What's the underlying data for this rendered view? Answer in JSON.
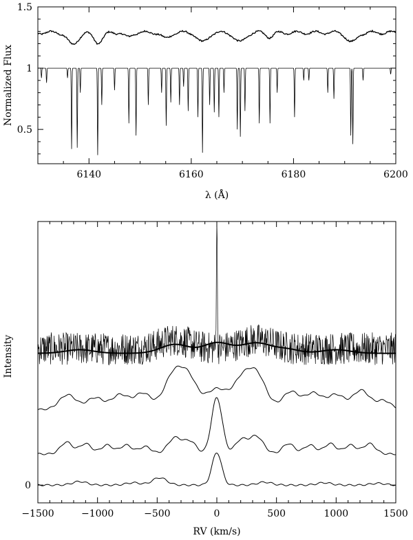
{
  "chart_data": [
    {
      "type": "line",
      "panel": "top",
      "xlabel": "λ (Å)",
      "ylabel": "Normalized Flux",
      "xlim": [
        6130,
        6200
      ],
      "ylim": [
        0.22,
        1.5
      ],
      "x_ticks": [
        6140,
        6160,
        6180,
        6200
      ],
      "y_ticks": [
        0.5,
        1,
        1.5
      ],
      "y_tick_labels": [
        "0.5",
        "1",
        "1.5"
      ],
      "grid": false,
      "series": [
        {
          "role": "observed spectrum (offset)",
          "baseline": 1.29,
          "features": [
            {
              "center": 6136.8,
              "depth": 0.1,
              "width": 1.0
            },
            {
              "center": 6141.8,
              "depth": 0.08,
              "width": 0.9
            },
            {
              "center": 6147.6,
              "depth": 0.04,
              "width": 0.7
            },
            {
              "center": 6155.0,
              "depth": 0.05,
              "width": 0.8
            },
            {
              "center": 6162.2,
              "depth": 0.08,
              "width": 1.0
            },
            {
              "center": 6169.5,
              "depth": 0.08,
              "width": 1.0
            },
            {
              "center": 6175.4,
              "depth": 0.035,
              "width": 0.7
            },
            {
              "center": 6191.4,
              "depth": 0.08,
              "width": 1.0
            }
          ]
        },
        {
          "role": "template spectrum",
          "baseline": 1.0,
          "lines": [
            {
              "x": 6130.7,
              "depth": 0.08
            },
            {
              "x": 6131.7,
              "depth": 0.12
            },
            {
              "x": 6135.8,
              "depth": 0.08
            },
            {
              "x": 6136.6,
              "depth": 0.66
            },
            {
              "x": 6137.7,
              "depth": 0.65
            },
            {
              "x": 6138.3,
              "depth": 0.2
            },
            {
              "x": 6141.7,
              "depth": 0.71
            },
            {
              "x": 6142.5,
              "depth": 0.3
            },
            {
              "x": 6145.0,
              "depth": 0.18
            },
            {
              "x": 6147.8,
              "depth": 0.45
            },
            {
              "x": 6149.2,
              "depth": 0.55
            },
            {
              "x": 6151.6,
              "depth": 0.3
            },
            {
              "x": 6154.2,
              "depth": 0.2
            },
            {
              "x": 6155.1,
              "depth": 0.47
            },
            {
              "x": 6156.0,
              "depth": 0.28
            },
            {
              "x": 6157.7,
              "depth": 0.3
            },
            {
              "x": 6158.5,
              "depth": 0.15
            },
            {
              "x": 6159.4,
              "depth": 0.35
            },
            {
              "x": 6161.3,
              "depth": 0.4
            },
            {
              "x": 6162.2,
              "depth": 0.69
            },
            {
              "x": 6163.6,
              "depth": 0.3
            },
            {
              "x": 6164.5,
              "depth": 0.36
            },
            {
              "x": 6165.4,
              "depth": 0.4
            },
            {
              "x": 6166.4,
              "depth": 0.2
            },
            {
              "x": 6169.0,
              "depth": 0.5
            },
            {
              "x": 6169.6,
              "depth": 0.56
            },
            {
              "x": 6170.5,
              "depth": 0.35
            },
            {
              "x": 6173.3,
              "depth": 0.45
            },
            {
              "x": 6175.4,
              "depth": 0.45
            },
            {
              "x": 6176.8,
              "depth": 0.2
            },
            {
              "x": 6180.2,
              "depth": 0.4
            },
            {
              "x": 6182.0,
              "depth": 0.1
            },
            {
              "x": 6183.0,
              "depth": 0.1
            },
            {
              "x": 6186.7,
              "depth": 0.2
            },
            {
              "x": 6187.9,
              "depth": 0.25
            },
            {
              "x": 6191.2,
              "depth": 0.55
            },
            {
              "x": 6191.6,
              "depth": 0.62
            },
            {
              "x": 6193.6,
              "depth": 0.1
            },
            {
              "x": 6199.0,
              "depth": 0.05
            }
          ]
        }
      ]
    },
    {
      "type": "line",
      "panel": "bottom",
      "xlabel": "RV  (km/s)",
      "ylabel": "Intensity",
      "xlim": [
        -1500,
        1500
      ],
      "ylim": [
        -0.6,
        8.9
      ],
      "x_ticks": [
        -1500,
        -1000,
        -500,
        0,
        500,
        1000,
        1500
      ],
      "x_tick_labels": [
        "−1500",
        "−1000",
        "−500",
        "0",
        "500",
        "1000",
        "1500"
      ],
      "y_ticks": [
        0
      ],
      "y_tick_labels": [
        "0"
      ],
      "grid": false,
      "series": [
        {
          "role": "noisy correlation (top trace)",
          "offset": 4.2,
          "noise_amplitude": 0.55,
          "spike": {
            "x": 0,
            "height": 4.5
          }
        },
        {
          "role": "smoothed correlation (thick)",
          "offset": 4.45,
          "bumps": [
            {
              "x": -350,
              "amp": 0.3,
              "width": 120
            },
            {
              "x": 0,
              "amp": 0.35,
              "width": 110
            },
            {
              "x": 330,
              "amp": 0.35,
              "width": 130
            },
            {
              "x": -1150,
              "amp": 0.12,
              "width": 120
            },
            {
              "x": 600,
              "amp": 0.12,
              "width": 100
            },
            {
              "x": 1000,
              "amp": 0.12,
              "width": 120
            }
          ]
        },
        {
          "role": "correlation 2",
          "offset": 2.55,
          "bumps": [
            {
              "x": -1250,
              "amp": 0.5,
              "width": 70
            },
            {
              "x": -1020,
              "amp": 0.4,
              "width": 70
            },
            {
              "x": -810,
              "amp": 0.5,
              "width": 70
            },
            {
              "x": -620,
              "amp": 0.55,
              "width": 70
            },
            {
              "x": -360,
              "amp": 1.2,
              "width": 80
            },
            {
              "x": -230,
              "amp": 0.9,
              "width": 70
            },
            {
              "x": 0,
              "amp": 0.7,
              "width": 90
            },
            {
              "x": 200,
              "amp": 0.8,
              "width": 70
            },
            {
              "x": 330,
              "amp": 1.2,
              "width": 80
            },
            {
              "x": 620,
              "amp": 0.6,
              "width": 70
            },
            {
              "x": 810,
              "amp": 0.55,
              "width": 70
            },
            {
              "x": 1000,
              "amp": 0.5,
              "width": 70
            },
            {
              "x": 1210,
              "amp": 0.65,
              "width": 70
            },
            {
              "x": 1400,
              "amp": 0.3,
              "width": 60
            }
          ]
        },
        {
          "role": "correlation 3",
          "offset": 1.05,
          "bumps": [
            {
              "x": -1260,
              "amp": 0.4,
              "width": 50
            },
            {
              "x": -1100,
              "amp": 0.35,
              "width": 50
            },
            {
              "x": -920,
              "amp": 0.3,
              "width": 50
            },
            {
              "x": -760,
              "amp": 0.3,
              "width": 50
            },
            {
              "x": -600,
              "amp": 0.25,
              "width": 50
            },
            {
              "x": -350,
              "amp": 0.55,
              "width": 60
            },
            {
              "x": -220,
              "amp": 0.4,
              "width": 50
            },
            {
              "x": 0,
              "amp": 1.9,
              "width": 45
            },
            {
              "x": 200,
              "amp": 0.45,
              "width": 50
            },
            {
              "x": 330,
              "amp": 0.6,
              "width": 60
            },
            {
              "x": 600,
              "amp": 0.35,
              "width": 50
            },
            {
              "x": 780,
              "amp": 0.3,
              "width": 50
            },
            {
              "x": 950,
              "amp": 0.35,
              "width": 50
            },
            {
              "x": 1120,
              "amp": 0.3,
              "width": 50
            },
            {
              "x": 1280,
              "amp": 0.35,
              "width": 50
            }
          ]
        },
        {
          "role": "correlation 4 (bottom)",
          "offset": 0.0,
          "bumps": [
            {
              "x": -1150,
              "amp": 0.12,
              "width": 60
            },
            {
              "x": -700,
              "amp": 0.08,
              "width": 60
            },
            {
              "x": -480,
              "amp": 0.25,
              "width": 60
            },
            {
              "x": 0,
              "amp": 1.1,
              "width": 40
            },
            {
              "x": 400,
              "amp": 0.1,
              "width": 60
            },
            {
              "x": 900,
              "amp": 0.08,
              "width": 60
            },
            {
              "x": 1350,
              "amp": 0.06,
              "width": 60
            }
          ]
        }
      ]
    }
  ]
}
